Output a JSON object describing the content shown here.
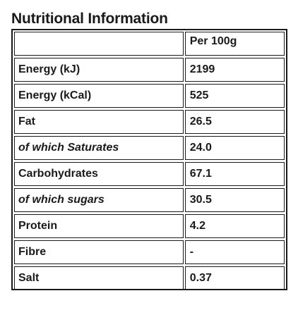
{
  "title": "Nutritional Information",
  "table": {
    "header": {
      "label": "",
      "value": "Per 100g"
    },
    "rows": [
      {
        "label": "Energy (kJ)",
        "value": "2199",
        "italic": false
      },
      {
        "label": "Energy (kCal)",
        "value": "525",
        "italic": false
      },
      {
        "label": "Fat",
        "value": "26.5",
        "italic": false
      },
      {
        "label": "of which Saturates",
        "value": "24.0",
        "italic": true
      },
      {
        "label": "Carbohydrates",
        "value": "67.1",
        "italic": false
      },
      {
        "label": "of which sugars",
        "value": "30.5",
        "italic": true
      },
      {
        "label": "Protein",
        "value": "4.2",
        "italic": false
      },
      {
        "label": "Fibre",
        "value": "-",
        "italic": false
      },
      {
        "label": "Salt",
        "value": "0.37",
        "italic": false
      }
    ]
  }
}
